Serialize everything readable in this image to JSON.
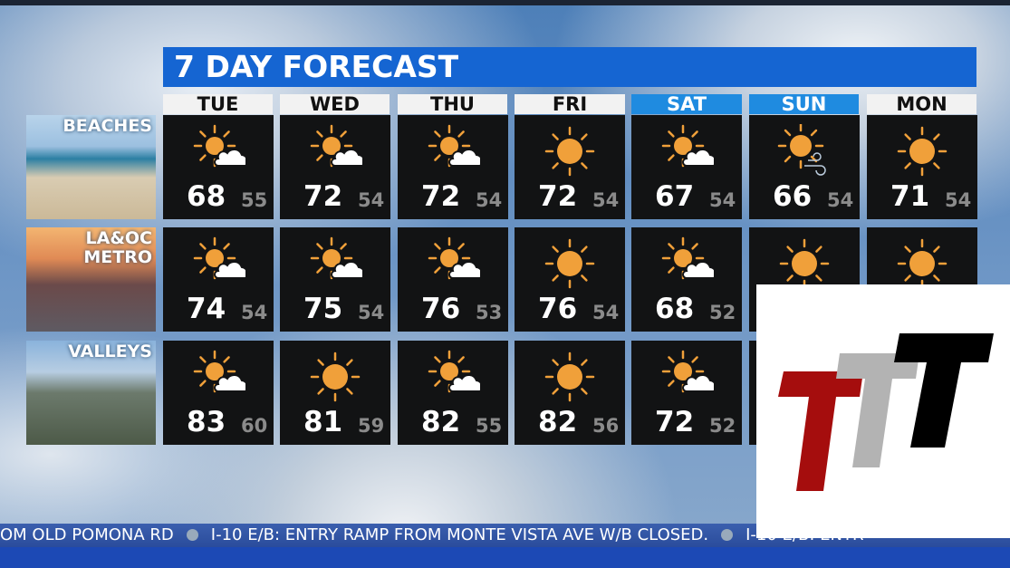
{
  "title": "7 DAY FORECAST",
  "colors": {
    "title_bar": "#1565d2",
    "weekend_header": "#1f8be0",
    "weekday_header": "#f2f2f2",
    "sun": "#f0a03a"
  },
  "days": [
    {
      "label": "TUE",
      "weekend": false
    },
    {
      "label": "WED",
      "weekend": false
    },
    {
      "label": "THU",
      "weekend": false
    },
    {
      "label": "FRI",
      "weekend": false
    },
    {
      "label": "SAT",
      "weekend": true
    },
    {
      "label": "SUN",
      "weekend": true
    },
    {
      "label": "MON",
      "weekend": false
    }
  ],
  "regions": [
    {
      "label": "BEACHES",
      "forecast": [
        {
          "icon": "partly-cloudy-icon",
          "hi": "68",
          "lo": "55"
        },
        {
          "icon": "partly-cloudy-icon",
          "hi": "72",
          "lo": "54"
        },
        {
          "icon": "partly-cloudy-icon",
          "hi": "72",
          "lo": "54"
        },
        {
          "icon": "sunny-icon",
          "hi": "72",
          "lo": "54"
        },
        {
          "icon": "partly-cloudy-icon",
          "hi": "67",
          "lo": "54"
        },
        {
          "icon": "sunny-windy-icon",
          "hi": "66",
          "lo": "54"
        },
        {
          "icon": "sunny-icon",
          "hi": "71",
          "lo": "54"
        }
      ]
    },
    {
      "label": "LA&OC\nMETRO",
      "forecast": [
        {
          "icon": "partly-cloudy-icon",
          "hi": "74",
          "lo": "54"
        },
        {
          "icon": "partly-cloudy-icon",
          "hi": "75",
          "lo": "54"
        },
        {
          "icon": "partly-cloudy-icon",
          "hi": "76",
          "lo": "53"
        },
        {
          "icon": "sunny-icon",
          "hi": "76",
          "lo": "54"
        },
        {
          "icon": "partly-cloudy-icon",
          "hi": "68",
          "lo": "52"
        },
        {
          "icon": "sunny-icon"
        },
        {
          "icon": "sunny-icon"
        }
      ]
    },
    {
      "label": "VALLEYS",
      "forecast": [
        {
          "icon": "partly-cloudy-icon",
          "hi": "83",
          "lo": "60"
        },
        {
          "icon": "sunny-icon",
          "hi": "81",
          "lo": "59"
        },
        {
          "icon": "partly-cloudy-icon",
          "hi": "82",
          "lo": "55"
        },
        {
          "icon": "sunny-icon",
          "hi": "82",
          "lo": "56"
        },
        {
          "icon": "partly-cloudy-icon",
          "hi": "72",
          "lo": "52"
        },
        {},
        {}
      ]
    }
  ],
  "ticker": {
    "items": [
      "OM OLD POMONA RD",
      "I-10 E/B: ENTRY RAMP FROM MONTE VISTA AVE W/B CLOSED.",
      "I-10 E/B: ENTR"
    ]
  },
  "logo": {
    "text": "TTT",
    "colors": [
      "#a50d0d",
      "#b3b3b3",
      "#000000"
    ]
  }
}
